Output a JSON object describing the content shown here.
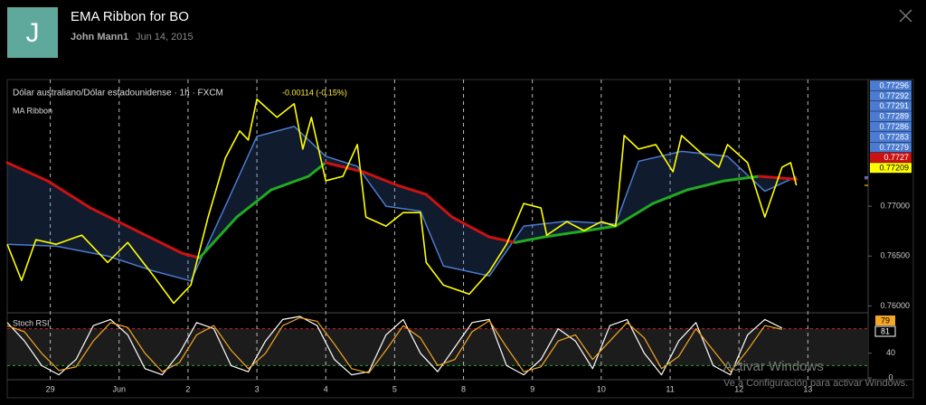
{
  "header": {
    "icon": "J",
    "title": "EMA Ribbon for BO",
    "author": "John Mann1",
    "date": "Jun 14, 2015"
  },
  "watermark": {
    "title": "Activar Windows",
    "subtitle": "Ve a Configuración para activar Windows."
  },
  "chart_data": [
    {
      "type": "line",
      "symbol": "Dólar australiano/Dólar estadounidense · 1h · FXCM",
      "change": "-0.00114 (-0.15%)",
      "indicator": "MA Ribbon",
      "xlim": [
        -15,
        285
      ],
      "xticks": [
        {
          "value": 0,
          "label": "29"
        },
        {
          "value": 24,
          "label": "Jun"
        },
        {
          "value": 48,
          "label": "2"
        },
        {
          "value": 72,
          "label": "3"
        },
        {
          "value": 96,
          "label": "4"
        },
        {
          "value": 120,
          "label": "5"
        },
        {
          "value": 144,
          "label": "8"
        },
        {
          "value": 168,
          "label": "9"
        },
        {
          "value": 192,
          "label": "10"
        },
        {
          "value": 216,
          "label": "11"
        },
        {
          "value": 240,
          "label": "12"
        },
        {
          "value": 264,
          "label": "13"
        }
      ],
      "x_grid": true,
      "ylim": [
        0.7594,
        0.7827
      ],
      "yticks": [
        {
          "value": 0.76,
          "label": "0.76000"
        },
        {
          "value": 0.765,
          "label": "0.76500"
        },
        {
          "value": 0.77,
          "label": "0.77000"
        }
      ],
      "series": [
        {
          "color": "#ffff00",
          "x": [
            -15,
            -10,
            -5,
            2,
            11,
            20,
            27,
            36,
            43,
            49,
            55,
            61,
            66,
            69,
            72,
            79,
            85,
            88,
            91,
            96,
            102,
            107,
            110,
            117,
            123,
            129,
            131,
            137,
            146,
            153,
            159,
            165,
            171,
            173,
            180,
            186,
            192,
            197,
            200,
            205,
            211,
            217,
            220,
            227,
            233,
            236,
            243,
            249,
            255,
            258,
            260
          ],
          "values": [
            0.76618,
            0.76255,
            0.76664,
            0.76618,
            0.76709,
            0.76436,
            0.76636,
            0.763,
            0.76027,
            0.76209,
            0.76891,
            0.77482,
            0.77755,
            0.77664,
            0.78073,
            0.77891,
            0.78027,
            0.77573,
            0.77891,
            0.77255,
            0.773,
            0.77618,
            0.76891,
            0.768,
            0.76936,
            0.76936,
            0.76436,
            0.76209,
            0.76118,
            0.76345,
            0.76618,
            0.77027,
            0.76982,
            0.76709,
            0.76845,
            0.76755,
            0.76845,
            0.768,
            0.77709,
            0.77573,
            0.77618,
            0.77345,
            0.77709,
            0.77527,
            0.77391,
            0.77618,
            0.77436,
            0.76891,
            0.77391,
            0.77436,
            0.77209
          ]
        },
        {
          "color": "#4a7bd0",
          "x": [
            -15,
            2,
            20,
            36,
            49,
            61,
            72,
            85,
            96,
            107,
            117,
            129,
            137,
            153,
            165,
            180,
            197,
            205,
            220,
            236,
            249,
            260
          ],
          "values": [
            0.76618,
            0.766,
            0.765,
            0.7635,
            0.7625,
            0.77,
            0.777,
            0.778,
            0.775,
            0.774,
            0.77,
            0.7695,
            0.764,
            0.763,
            0.768,
            0.7685,
            0.7682,
            0.7745,
            0.7755,
            0.775,
            0.7715,
            0.77296
          ]
        },
        {
          "color": "#cc1111",
          "rising_color": "#22aa22",
          "x": [
            -15,
            -1,
            14,
            30,
            46,
            52,
            65,
            77,
            90,
            96,
            109,
            121,
            131,
            140,
            153,
            162,
            172,
            187,
            197,
            210,
            222,
            235,
            247,
            260
          ],
          "values": [
            0.77436,
            0.77255,
            0.76982,
            0.76755,
            0.76527,
            0.76482,
            0.76891,
            0.77164,
            0.773,
            0.77436,
            0.77345,
            0.77209,
            0.77118,
            0.76891,
            0.76691,
            0.76636,
            0.76691,
            0.76755,
            0.768,
            0.77027,
            0.77164,
            0.77255,
            0.773,
            0.7727
          ]
        }
      ],
      "ribbon_last_values": [
        0.77292,
        0.77291,
        0.77289,
        0.77286,
        0.77283,
        0.77279
      ],
      "ribbon_color": "#4a7bd0"
    },
    {
      "type": "line",
      "title": "Stoch RSI",
      "x": [
        -15,
        -9,
        -3,
        3,
        9,
        15,
        21,
        27,
        33,
        39,
        45,
        51,
        57,
        63,
        69,
        75,
        81,
        87,
        93,
        99,
        105,
        111,
        117,
        123,
        129,
        135,
        141,
        147,
        153,
        159,
        165,
        171,
        177,
        183,
        189,
        195,
        201,
        207,
        213,
        219,
        225,
        231,
        237,
        243,
        249,
        255
      ],
      "ylim": [
        0,
        100
      ],
      "yticks": [
        0,
        40
      ],
      "bands": [
        20,
        80
      ],
      "band_colors": [
        "#22aa22",
        "#cc2222"
      ],
      "series": [
        {
          "color": "#ffffff",
          "values": [
            90,
            60,
            20,
            5,
            30,
            85,
            95,
            70,
            15,
            5,
            40,
            90,
            80,
            20,
            10,
            60,
            95,
            100,
            85,
            30,
            5,
            10,
            70,
            95,
            40,
            10,
            50,
            90,
            95,
            20,
            5,
            30,
            80,
            60,
            15,
            85,
            95,
            40,
            5,
            60,
            90,
            20,
            5,
            70,
            95,
            81
          ]
        },
        {
          "color": "#f5a623",
          "values": [
            85,
            75,
            40,
            12,
            18,
            60,
            90,
            82,
            40,
            10,
            25,
            70,
            85,
            45,
            15,
            40,
            85,
            98,
            92,
            55,
            15,
            8,
            45,
            85,
            65,
            20,
            30,
            75,
            93,
            50,
            10,
            18,
            60,
            70,
            30,
            60,
            90,
            65,
            15,
            35,
            80,
            45,
            10,
            45,
            85,
            79
          ]
        }
      ]
    }
  ]
}
